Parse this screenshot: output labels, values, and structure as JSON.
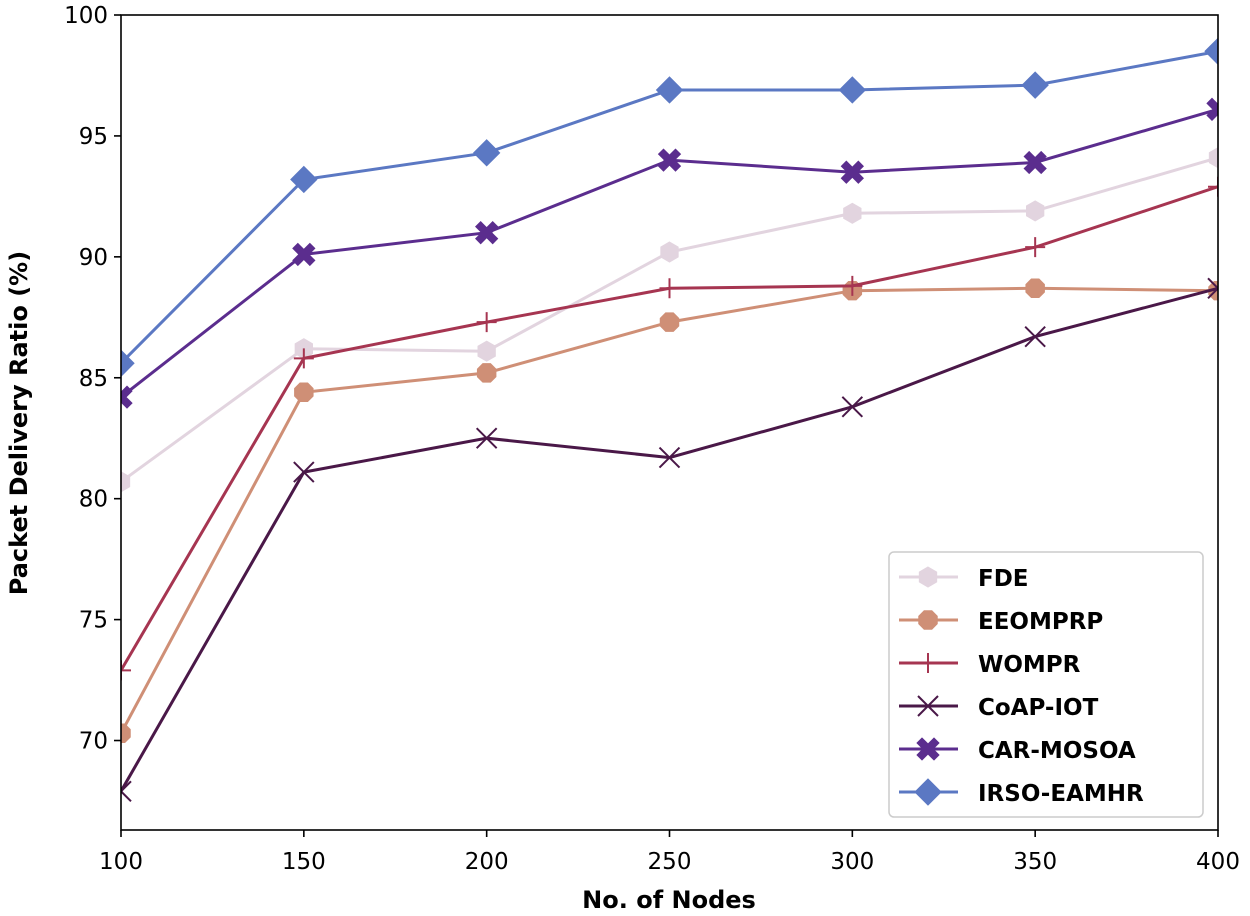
{
  "chart_data": {
    "type": "line",
    "title": "",
    "xlabel": "No. of Nodes",
    "ylabel": "Packet Delivery Ratio (%)",
    "x": [
      100,
      150,
      200,
      250,
      300,
      350,
      400
    ],
    "xlim": [
      100,
      400
    ],
    "ylim": [
      66.3,
      100
    ],
    "xticks": [
      100,
      150,
      200,
      250,
      300,
      350,
      400
    ],
    "yticks": [
      70,
      75,
      80,
      85,
      90,
      95,
      100
    ],
    "grid": false,
    "legend_position": "lower-right",
    "series": [
      {
        "name": "FDE",
        "color": "#e2d4df",
        "marker": "hexagon",
        "values": [
          80.7,
          86.2,
          86.1,
          90.2,
          91.8,
          91.9,
          94.1
        ]
      },
      {
        "name": "EEOMPRP",
        "color": "#cf8f76",
        "marker": "octagon",
        "values": [
          70.3,
          84.4,
          85.2,
          87.3,
          88.6,
          88.7,
          88.6
        ]
      },
      {
        "name": "WOMPR",
        "color": "#a63551",
        "marker": "plus",
        "values": [
          72.9,
          85.8,
          87.3,
          88.7,
          88.8,
          90.4,
          92.9
        ]
      },
      {
        "name": "CoAP-IOT",
        "color": "#4a1848",
        "marker": "x",
        "values": [
          67.9,
          81.1,
          82.5,
          81.7,
          83.8,
          86.7,
          88.7
        ]
      },
      {
        "name": "CAR-MOSOA",
        "color": "#5b2d8e",
        "marker": "thick-x",
        "values": [
          84.2,
          90.1,
          91.0,
          94.0,
          93.5,
          93.9,
          96.1
        ]
      },
      {
        "name": "IRSO-EAMHR",
        "color": "#5b78c3",
        "marker": "diamond",
        "values": [
          85.6,
          93.2,
          94.3,
          96.9,
          96.9,
          97.1,
          98.5
        ]
      }
    ]
  }
}
